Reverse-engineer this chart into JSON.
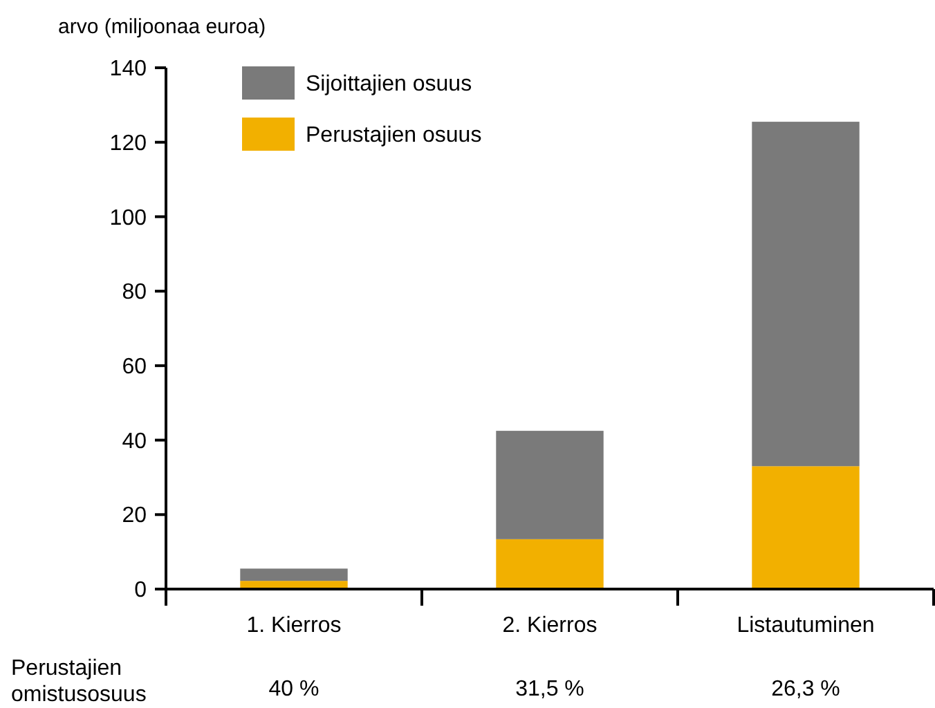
{
  "chart_data": {
    "type": "bar",
    "stacked": true,
    "ylabel": "arvo (miljoonaa euroa)",
    "categories": [
      "1. Kierros",
      "2. Kierros",
      "Listautuminen"
    ],
    "series": [
      {
        "name": "Perustajien osuus",
        "color": "#f2b000",
        "values": [
          2.2,
          13.4,
          33
        ]
      },
      {
        "name": "Sijoittajien osuus",
        "color": "#7a7a7a",
        "values": [
          3.3,
          29.1,
          92.5
        ]
      }
    ],
    "ylim": [
      0,
      140
    ],
    "yticks": [
      0,
      20,
      40,
      60,
      80,
      100,
      120,
      140
    ],
    "legend": "top left",
    "annotations": [
      "Perustajien omistusosuus",
      "40 %",
      "31,5 %",
      "26,3 %"
    ]
  }
}
